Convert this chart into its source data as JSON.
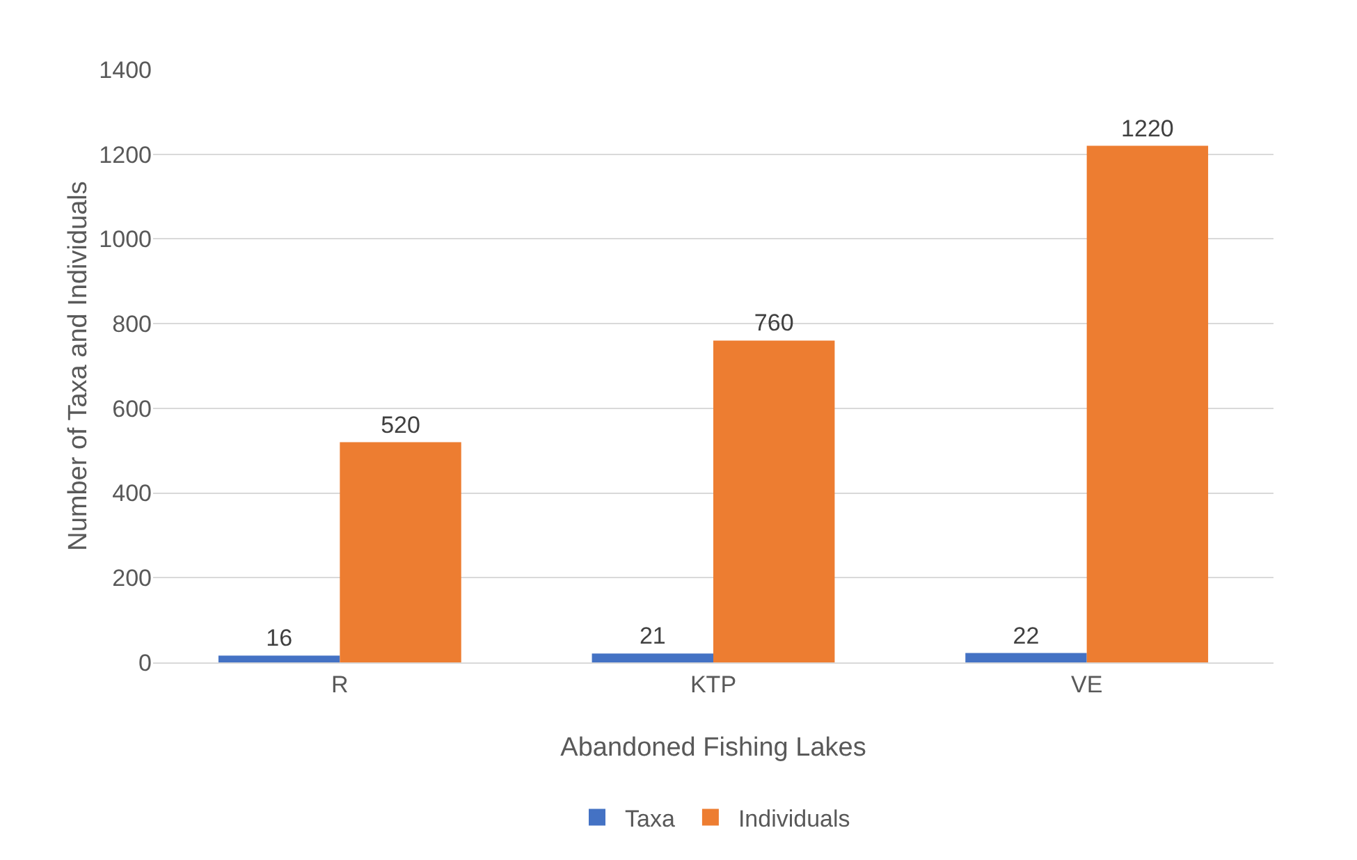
{
  "chart_data": {
    "type": "bar",
    "xlabel": "Abandoned Fishing Lakes",
    "ylabel": "Number of Taxa and Individuals",
    "categories": [
      "R",
      "KTP",
      "VE"
    ],
    "series": [
      {
        "name": "Taxa",
        "color": "#4472c4",
        "values": [
          16,
          21,
          22
        ]
      },
      {
        "name": "Individuals",
        "color": "#ed7d31",
        "values": [
          520,
          760,
          1220
        ]
      }
    ],
    "ylim": [
      0,
      1400
    ],
    "yticks": [
      0,
      200,
      400,
      600,
      800,
      1000,
      1200,
      1400
    ],
    "grid": "y",
    "legend": "bottom",
    "data_labels": true
  }
}
